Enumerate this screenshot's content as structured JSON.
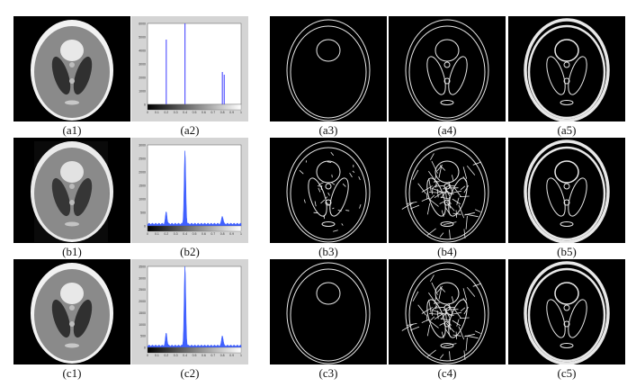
{
  "rows": [
    {
      "id": "a",
      "captions": [
        "(a1)",
        "(a2)",
        "(a3)",
        "(a4)",
        "(a5)"
      ],
      "hist_y_ticks": [
        "6000",
        "5000",
        "4000",
        "3000",
        "2000",
        "1000",
        "0"
      ],
      "hist_x_ticks": [
        "0",
        "0.1",
        "0.2",
        "0.3",
        "0.4",
        "0.5",
        "0.6",
        "0.7",
        "0.8",
        "0.9",
        "1"
      ]
    },
    {
      "id": "b",
      "captions": [
        "(b1)",
        "(b2)",
        "(b3)",
        "(b4)",
        "(b5)"
      ],
      "hist_y_ticks": [
        "3000",
        "2500",
        "2000",
        "1500",
        "1000",
        "500",
        "0"
      ],
      "hist_x_ticks": [
        "0",
        "0.1",
        "0.2",
        "0.3",
        "0.4",
        "0.5",
        "0.6",
        "0.7",
        "0.8",
        "0.9",
        "1"
      ]
    },
    {
      "id": "c",
      "captions": [
        "(c1)",
        "(c2)",
        "(c3)",
        "(c4)",
        "(c5)"
      ],
      "hist_y_ticks": [
        "3500",
        "3000",
        "2500",
        "2000",
        "1500",
        "1000",
        "500",
        "0"
      ],
      "hist_x_ticks": [
        "0",
        "0.1",
        "0.2",
        "0.3",
        "0.4",
        "0.5",
        "0.6",
        "0.7",
        "0.8",
        "0.9",
        "1"
      ]
    }
  ],
  "chart_data": [
    {
      "type": "bar",
      "panel": "(a2)",
      "xlim": [
        0,
        1
      ],
      "ylim": [
        0,
        6000
      ],
      "x": [
        0.2,
        0.4,
        0.8,
        0.82
      ],
      "values": [
        4800,
        6000,
        2400,
        2200
      ],
      "color": "#5a5aff"
    },
    {
      "type": "area",
      "panel": "(b2)",
      "xlim": [
        0,
        1
      ],
      "ylim": [
        0,
        3000
      ],
      "peaks": [
        [
          0.2,
          450
        ],
        [
          0.4,
          2700
        ],
        [
          0.8,
          300
        ]
      ],
      "color": "#4060ff"
    },
    {
      "type": "area",
      "panel": "(c2)",
      "xlim": [
        0,
        1
      ],
      "ylim": [
        0,
        3500
      ],
      "peaks": [
        [
          0.2,
          550
        ],
        [
          0.4,
          3450
        ],
        [
          0.8,
          450
        ]
      ],
      "color": "#4060ff"
    }
  ]
}
